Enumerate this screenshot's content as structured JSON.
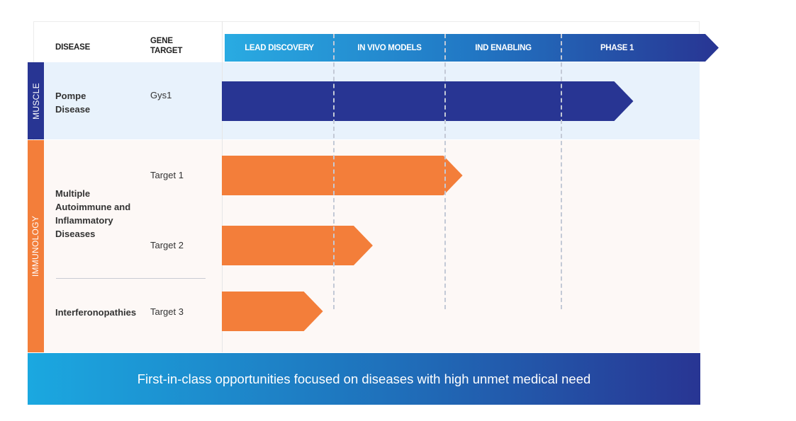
{
  "header": {
    "disease": "DISEASE",
    "gene_target": "GENE TARGET"
  },
  "categories": [
    {
      "label": "MUSCLE",
      "color": "#283593"
    },
    {
      "label": "IMMUNOLOGY",
      "color": "#f37e3a"
    }
  ],
  "rows": {
    "pompe": {
      "disease": "Pompe Disease",
      "target": "Gys1"
    },
    "autoimmune": {
      "disease": "Multiple Autoimmune and Inflammatory Diseases",
      "target1": "Target 1",
      "target2": "Target 2"
    },
    "interferon": {
      "disease": "Interferonopathies",
      "target": "Target 3"
    }
  },
  "footer": "First-in-class opportunities focused on diseases with high unmet medical need",
  "chart_data": {
    "type": "bar",
    "orientation": "horizontal",
    "phases": [
      "LEAD DISCOVERY",
      "IN VIVO MODELS",
      "IND ENABLING",
      "PHASE 1"
    ],
    "series": [
      {
        "name": "Gys1",
        "category": "MUSCLE",
        "progress_phases": 3.5,
        "color": "#283593"
      },
      {
        "name": "Target 1",
        "category": "IMMUNOLOGY",
        "progress_phases": 2.15,
        "color": "#f37e3a"
      },
      {
        "name": "Target 2",
        "category": "IMMUNOLOGY",
        "progress_phases": 1.35,
        "color": "#f37e3a"
      },
      {
        "name": "Target 3",
        "category": "IMMUNOLOGY",
        "progress_phases": 0.9,
        "color": "#f37e3a"
      }
    ],
    "xlim": [
      0,
      4
    ]
  }
}
